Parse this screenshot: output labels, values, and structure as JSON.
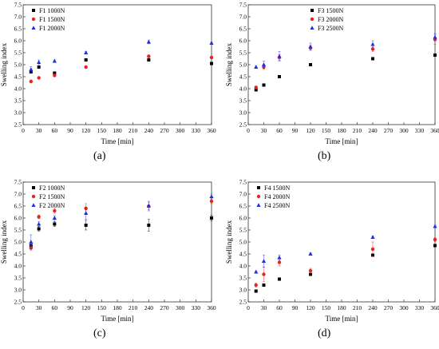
{
  "colors": {
    "black": "#000000",
    "red": "#e8231e",
    "blue": "#1f2ee0",
    "axis": "#333333"
  },
  "chart_data": [
    {
      "type": "scatter",
      "panel_label": "(a)",
      "xlabel": "Time [min]",
      "ylabel": "Swelling index",
      "xlim": [
        0,
        360
      ],
      "ylim": [
        2.5,
        7.5
      ],
      "xticks": [
        0,
        30,
        60,
        90,
        120,
        150,
        180,
        210,
        240,
        270,
        300,
        330,
        360
      ],
      "yticks": [
        2.5,
        3.0,
        3.5,
        4.0,
        4.5,
        5.0,
        5.5,
        6.0,
        6.5,
        7.0,
        7.5
      ],
      "legend_position": "top-left",
      "series": [
        {
          "name": "F1 1000N",
          "marker": "square",
          "color": "#000000",
          "x": [
            15,
            30,
            60,
            120,
            240,
            360
          ],
          "y": [
            4.7,
            4.9,
            4.65,
            5.2,
            5.2,
            5.05
          ],
          "err": [
            0.05,
            0.05,
            0.04,
            0.06,
            0.06,
            0.04
          ]
        },
        {
          "name": "F1 1500N",
          "marker": "circle",
          "color": "#e8231e",
          "x": [
            15,
            30,
            60,
            120,
            240,
            360
          ],
          "y": [
            4.3,
            4.45,
            4.55,
            4.9,
            5.35,
            5.3
          ],
          "err": [
            0.06,
            0.05,
            0.05,
            0.05,
            0.06,
            0.05
          ]
        },
        {
          "name": "F1 2000N",
          "marker": "triangle",
          "color": "#1f2ee0",
          "x": [
            15,
            30,
            60,
            120,
            240,
            360
          ],
          "y": [
            4.8,
            5.1,
            5.15,
            5.5,
            5.95,
            5.9
          ],
          "err": [
            0.12,
            0.1,
            0.05,
            0.06,
            0.08,
            0.05
          ]
        }
      ]
    },
    {
      "type": "scatter",
      "panel_label": "(b)",
      "xlabel": "Time [min]",
      "ylabel": "Swelling index",
      "xlim": [
        0,
        360
      ],
      "ylim": [
        2.5,
        7.5
      ],
      "xticks": [
        0,
        30,
        60,
        90,
        120,
        150,
        180,
        210,
        240,
        270,
        300,
        330,
        360
      ],
      "yticks": [
        2.5,
        3.0,
        3.5,
        4.0,
        4.5,
        5.0,
        5.5,
        6.0,
        6.5,
        7.0,
        7.5
      ],
      "legend_position": "top-center",
      "series": [
        {
          "name": "F3 1500N",
          "marker": "square",
          "color": "#000000",
          "x": [
            15,
            30,
            60,
            120,
            240,
            360
          ],
          "y": [
            3.95,
            4.15,
            4.5,
            5.0,
            5.25,
            5.4
          ],
          "err": [
            0.05,
            0.05,
            0.05,
            0.05,
            0.05,
            0.05
          ]
        },
        {
          "name": "F3 2000N",
          "marker": "circle",
          "color": "#e8231e",
          "x": [
            15,
            30,
            60,
            120,
            240,
            360
          ],
          "y": [
            4.05,
            4.9,
            5.3,
            5.7,
            5.65,
            6.05
          ],
          "err": [
            0.06,
            0.1,
            0.12,
            0.1,
            0.1,
            0.2
          ]
        },
        {
          "name": "F3 2500N",
          "marker": "triangle",
          "color": "#1f2ee0",
          "x": [
            15,
            30,
            60,
            120,
            240,
            360
          ],
          "y": [
            4.9,
            5.0,
            5.35,
            5.75,
            5.85,
            6.15
          ],
          "err": [
            0.05,
            0.15,
            0.2,
            0.15,
            0.15,
            0.15
          ]
        }
      ]
    },
    {
      "type": "scatter",
      "panel_label": "(c)",
      "xlabel": "Time [min]",
      "ylabel": "Swelling index",
      "xlim": [
        0,
        360
      ],
      "ylim": [
        2.5,
        7.5
      ],
      "xticks": [
        0,
        30,
        60,
        90,
        120,
        150,
        180,
        210,
        240,
        270,
        300,
        330,
        360
      ],
      "yticks": [
        2.5,
        3.0,
        3.5,
        4.0,
        4.5,
        5.0,
        5.5,
        6.0,
        6.5,
        7.0,
        7.5
      ],
      "legend_position": "top-left",
      "series": [
        {
          "name": "F2 1000N",
          "marker": "square",
          "color": "#000000",
          "x": [
            15,
            30,
            60,
            120,
            240,
            360
          ],
          "y": [
            4.85,
            5.55,
            5.75,
            5.7,
            5.7,
            6.0
          ],
          "err": [
            0.1,
            0.1,
            0.1,
            0.2,
            0.25,
            0.12
          ]
        },
        {
          "name": "F2 1500N",
          "marker": "circle",
          "color": "#e8231e",
          "x": [
            15,
            30,
            60,
            120,
            240,
            360
          ],
          "y": [
            4.75,
            6.05,
            6.3,
            6.4,
            6.5,
            6.7
          ],
          "err": [
            0.1,
            0.08,
            0.1,
            0.2,
            0.15,
            0.1
          ]
        },
        {
          "name": "F2 2000N",
          "marker": "triangle",
          "color": "#1f2ee0",
          "x": [
            15,
            30,
            60,
            120,
            240,
            360
          ],
          "y": [
            5.0,
            5.75,
            6.0,
            6.2,
            6.5,
            6.9
          ],
          "err": [
            0.3,
            0.1,
            0.1,
            0.25,
            0.2,
            0.1
          ]
        }
      ]
    },
    {
      "type": "scatter",
      "panel_label": "(d)",
      "xlabel": "Time [min]",
      "ylabel": "Swelling index",
      "xlim": [
        0,
        360
      ],
      "ylim": [
        2.5,
        7.5
      ],
      "xticks": [
        0,
        30,
        60,
        90,
        120,
        150,
        180,
        210,
        240,
        270,
        300,
        330,
        360
      ],
      "yticks": [
        2.5,
        3.0,
        3.5,
        4.0,
        4.5,
        5.0,
        5.5,
        6.0,
        6.5,
        7.0,
        7.5
      ],
      "legend_position": "top-left",
      "series": [
        {
          "name": "F4 1500N",
          "marker": "square",
          "color": "#000000",
          "x": [
            15,
            30,
            60,
            120,
            240,
            360
          ],
          "y": [
            2.95,
            3.2,
            3.45,
            3.65,
            4.45,
            4.85
          ],
          "err": [
            0.05,
            0.05,
            0.04,
            0.04,
            0.05,
            0.04
          ]
        },
        {
          "name": "F4 2000N",
          "marker": "circle",
          "color": "#e8231e",
          "x": [
            15,
            30,
            60,
            120,
            240,
            360
          ],
          "y": [
            3.2,
            3.65,
            4.15,
            3.8,
            4.7,
            5.1
          ],
          "err": [
            0.08,
            0.3,
            0.15,
            0.1,
            0.3,
            0.08
          ]
        },
        {
          "name": "F4 2500N",
          "marker": "triangle",
          "color": "#1f2ee0",
          "x": [
            15,
            30,
            60,
            120,
            240,
            360
          ],
          "y": [
            3.75,
            4.2,
            4.35,
            4.5,
            5.2,
            5.65
          ],
          "err": [
            0.05,
            0.25,
            0.1,
            0.05,
            0.05,
            0.05
          ]
        }
      ]
    }
  ]
}
